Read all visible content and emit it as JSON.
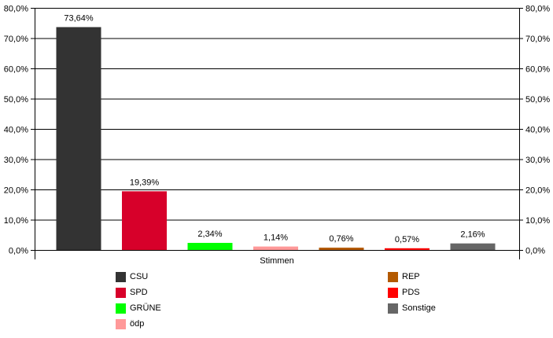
{
  "chart_data": {
    "type": "bar",
    "xlabel": "Stimmen",
    "ylim": [
      0,
      80
    ],
    "yticks": [
      "0,0%",
      "10,0%",
      "20,0%",
      "30,0%",
      "40,0%",
      "50,0%",
      "60,0%",
      "70,0%",
      "80,0%"
    ],
    "grid": true,
    "legend_placement": "bottom",
    "series": [
      {
        "name": "CSU",
        "value": 73.64,
        "label": "73,64%",
        "color": "#333333"
      },
      {
        "name": "SPD",
        "value": 19.39,
        "label": "19,39%",
        "color": "#d7002a"
      },
      {
        "name": "GRÜNE",
        "value": 2.34,
        "label": "2,34%",
        "color": "#00ff00"
      },
      {
        "name": "ödp",
        "value": 1.14,
        "label": "1,14%",
        "color": "#ff9999"
      },
      {
        "name": "REP",
        "value": 0.76,
        "label": "0,76%",
        "color": "#b35900"
      },
      {
        "name": "PDS",
        "value": 0.57,
        "label": "0,57%",
        "color": "#ff0000"
      },
      {
        "name": "Sonstige",
        "value": 2.16,
        "label": "2,16%",
        "color": "#666666"
      }
    ]
  }
}
